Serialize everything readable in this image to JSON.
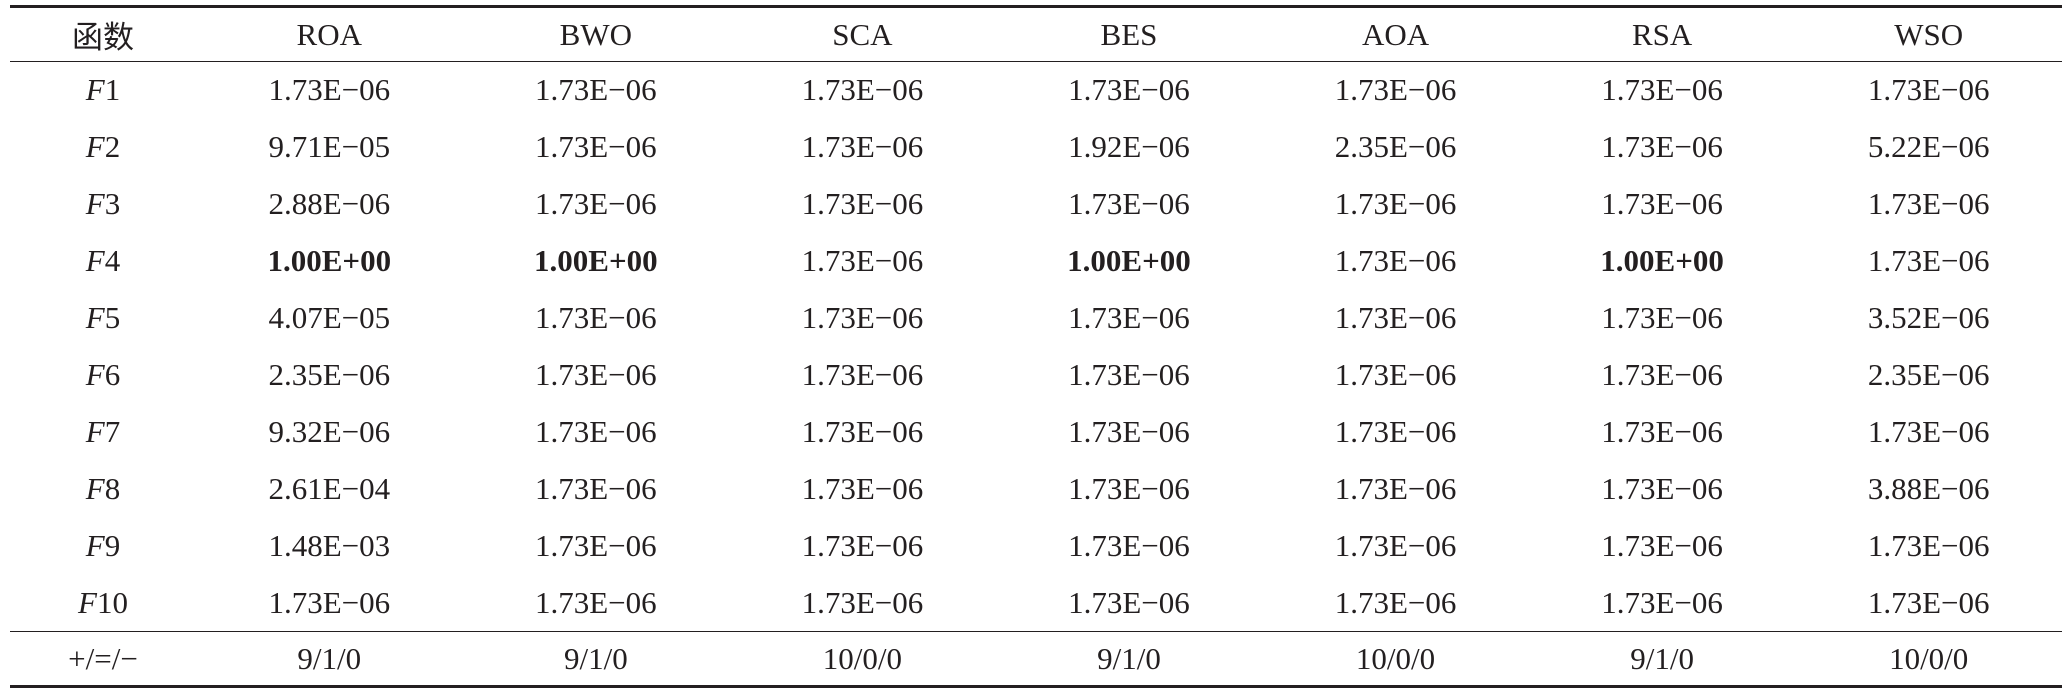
{
  "table": {
    "header": [
      "函数",
      "ROA",
      "BWO",
      "SCA",
      "BES",
      "AOA",
      "RSA",
      "WSO"
    ],
    "rows": [
      [
        "F1",
        "1.73E−06",
        "1.73E−06",
        "1.73E−06",
        "1.73E−06",
        "1.73E−06",
        "1.73E−06",
        "1.73E−06"
      ],
      [
        "F2",
        "9.71E−05",
        "1.73E−06",
        "1.73E−06",
        "1.92E−06",
        "2.35E−06",
        "1.73E−06",
        "5.22E−06"
      ],
      [
        "F3",
        "2.88E−06",
        "1.73E−06",
        "1.73E−06",
        "1.73E−06",
        "1.73E−06",
        "1.73E−06",
        "1.73E−06"
      ],
      [
        "F4",
        "1.00E+00",
        "1.00E+00",
        "1.73E−06",
        "1.00E+00",
        "1.73E−06",
        "1.00E+00",
        "1.73E−06"
      ],
      [
        "F5",
        "4.07E−05",
        "1.73E−06",
        "1.73E−06",
        "1.73E−06",
        "1.73E−06",
        "1.73E−06",
        "3.52E−06"
      ],
      [
        "F6",
        "2.35E−06",
        "1.73E−06",
        "1.73E−06",
        "1.73E−06",
        "1.73E−06",
        "1.73E−06",
        "2.35E−06"
      ],
      [
        "F7",
        "9.32E−06",
        "1.73E−06",
        "1.73E−06",
        "1.73E−06",
        "1.73E−06",
        "1.73E−06",
        "1.73E−06"
      ],
      [
        "F8",
        "2.61E−04",
        "1.73E−06",
        "1.73E−06",
        "1.73E−06",
        "1.73E−06",
        "1.73E−06",
        "3.88E−06"
      ],
      [
        "F9",
        "1.48E−03",
        "1.73E−06",
        "1.73E−06",
        "1.73E−06",
        "1.73E−06",
        "1.73E−06",
        "1.73E−06"
      ],
      [
        "F10",
        "1.73E−06",
        "1.73E−06",
        "1.73E−06",
        "1.73E−06",
        "1.73E−06",
        "1.73E−06",
        "1.73E−06"
      ]
    ],
    "footer": [
      "+/=/−",
      "9/1/0",
      "9/1/0",
      "10/0/0",
      "9/1/0",
      "10/0/0",
      "9/1/0",
      "10/0/0"
    ]
  }
}
